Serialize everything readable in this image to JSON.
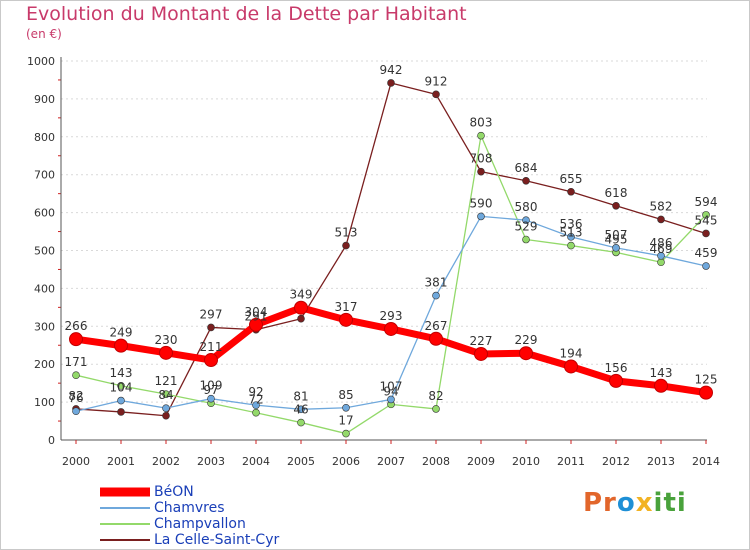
{
  "header": {
    "title": "Evolution du Montant de la Dette par Habitant",
    "subtitle": "(en €)"
  },
  "logo": {
    "text": "Proxiti"
  },
  "colors": {
    "title": "#c83a6a",
    "legend_text": "#1a3fb8",
    "axis": "#555555",
    "grid": "#d9d9d9",
    "tick_mark": "#d02020"
  },
  "chart_data": {
    "type": "line",
    "title": "Evolution du Montant de la Dette par Habitant",
    "subtitle": "(en €)",
    "xlabel": "",
    "ylabel": "",
    "categories": [
      "2000",
      "2001",
      "2002",
      "2003",
      "2004",
      "2005",
      "2006",
      "2007",
      "2008",
      "2009",
      "2010",
      "2011",
      "2012",
      "2013",
      "2014"
    ],
    "ylim": [
      0,
      1000
    ],
    "yticks": [
      0,
      100,
      200,
      300,
      400,
      500,
      600,
      700,
      800,
      900,
      1000
    ],
    "grid": "horizontal dashed",
    "legend_position": "bottom-left",
    "series": [
      {
        "name": "BéON",
        "color": "#ff0000",
        "values": [
          266,
          249,
          230,
          211,
          304,
          349,
          317,
          293,
          267,
          227,
          229,
          194,
          156,
          143,
          125
        ],
        "labels": [
          "266",
          "249",
          "230",
          "211",
          "304",
          "349",
          "317",
          "293",
          "267",
          "227",
          "229",
          "194",
          "156",
          "143",
          "125"
        ]
      },
      {
        "name": "Chamvres",
        "color": "#6fa8dc",
        "values": [
          76,
          104,
          84,
          109,
          92,
          81,
          85,
          107,
          381,
          590,
          580,
          536,
          507,
          486,
          459
        ],
        "labels": [
          "76",
          "104",
          "84",
          "109",
          "92",
          "81",
          "85",
          "107",
          "381",
          "590",
          "580",
          "536",
          "507",
          "486",
          "459"
        ]
      },
      {
        "name": "Champvallon",
        "color": "#93d96a",
        "values": [
          171,
          143,
          121,
          97,
          72,
          46,
          17,
          94,
          82,
          803,
          529,
          513,
          495,
          469,
          594
        ],
        "labels": [
          "171",
          "143",
          "121",
          "97",
          "72",
          "46",
          "17",
          "94",
          "82",
          "803",
          "529",
          "513",
          "495",
          "469",
          "594"
        ]
      },
      {
        "name": "La Celle-Saint-Cyr",
        "color": "#7a1f1f",
        "values": [
          82,
          74,
          64,
          297,
          291,
          320,
          513,
          942,
          912,
          708,
          684,
          655,
          618,
          582,
          545
        ],
        "labels": [
          "82",
          "",
          "",
          "297",
          "291",
          "",
          "513",
          "942",
          "912",
          "708",
          "684",
          "655",
          "618",
          "582",
          "545"
        ]
      }
    ]
  }
}
